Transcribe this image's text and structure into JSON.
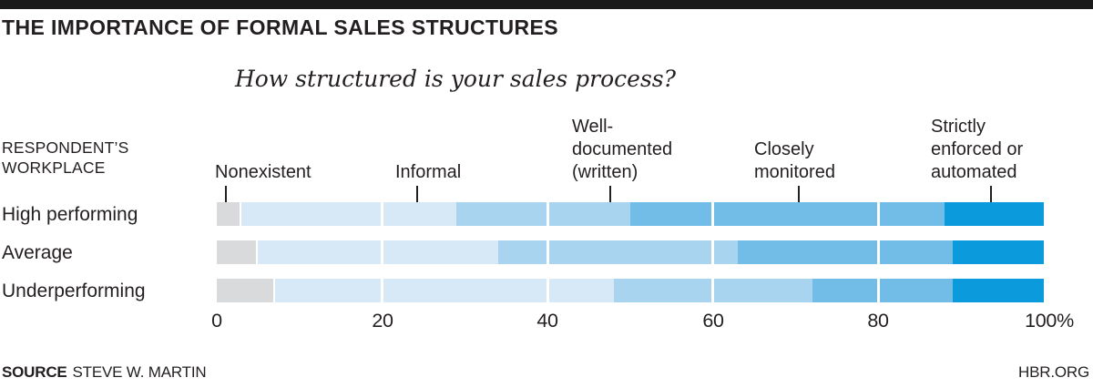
{
  "title": "THE IMPORTANCE OF FORMAL SALES STRUCTURES",
  "subtitle": "How structured is your sales process?",
  "row_header": {
    "line1": "RESPONDENT’S",
    "line2": "WORKPLACE"
  },
  "category_labels": {
    "nonexistent": {
      "l1": "Nonexistent"
    },
    "informal": {
      "l1": "Informal"
    },
    "well_documented": {
      "l1": "Well-",
      "l2": "documented",
      "l3": "(written)"
    },
    "closely_monitored": {
      "l1": "Closely",
      "l2": "monitored"
    },
    "strictly_enforced": {
      "l1": "Strictly",
      "l2": "enforced or",
      "l3": "automated"
    }
  },
  "rows": {
    "r1": "High performing",
    "r2": "Average",
    "r3": "Underperforming"
  },
  "ticks": {
    "t0": "0",
    "t20": "20",
    "t40": "40",
    "t60": "60",
    "t80": "80",
    "t100": "100%"
  },
  "footer": {
    "source_label": "SOURCE",
    "source_text": "STEVE W. MARTIN",
    "brand": "HBR.ORG"
  },
  "chart_data": {
    "type": "bar",
    "orientation": "horizontal",
    "stacked": true,
    "title": "THE IMPORTANCE OF FORMAL SALES STRUCTURES",
    "question": "How structured is your sales process?",
    "unit": "percent",
    "xlim": [
      0,
      100
    ],
    "x_ticks": [
      0,
      20,
      40,
      60,
      80,
      100
    ],
    "grid": "white lines at 20/40/60/80 over bars",
    "legend_position": "labels above first bar with leader lines",
    "categories": [
      "Nonexistent",
      "Informal",
      "Well-documented (written)",
      "Closely monitored",
      "Strictly enforced or automated"
    ],
    "colors": [
      "#d9dadb",
      "#d7e8f7",
      "#a8d4f0",
      "#72bce8",
      "#0b9bdd"
    ],
    "series": [
      {
        "name": "High performing",
        "values": [
          3,
          26,
          21,
          38,
          12
        ]
      },
      {
        "name": "Average",
        "values": [
          5,
          29,
          29,
          26,
          11
        ]
      },
      {
        "name": "Underperforming",
        "values": [
          7,
          41,
          24,
          17,
          11
        ]
      }
    ],
    "source": "STEVE W. MARTIN",
    "branding": "HBR.ORG"
  }
}
